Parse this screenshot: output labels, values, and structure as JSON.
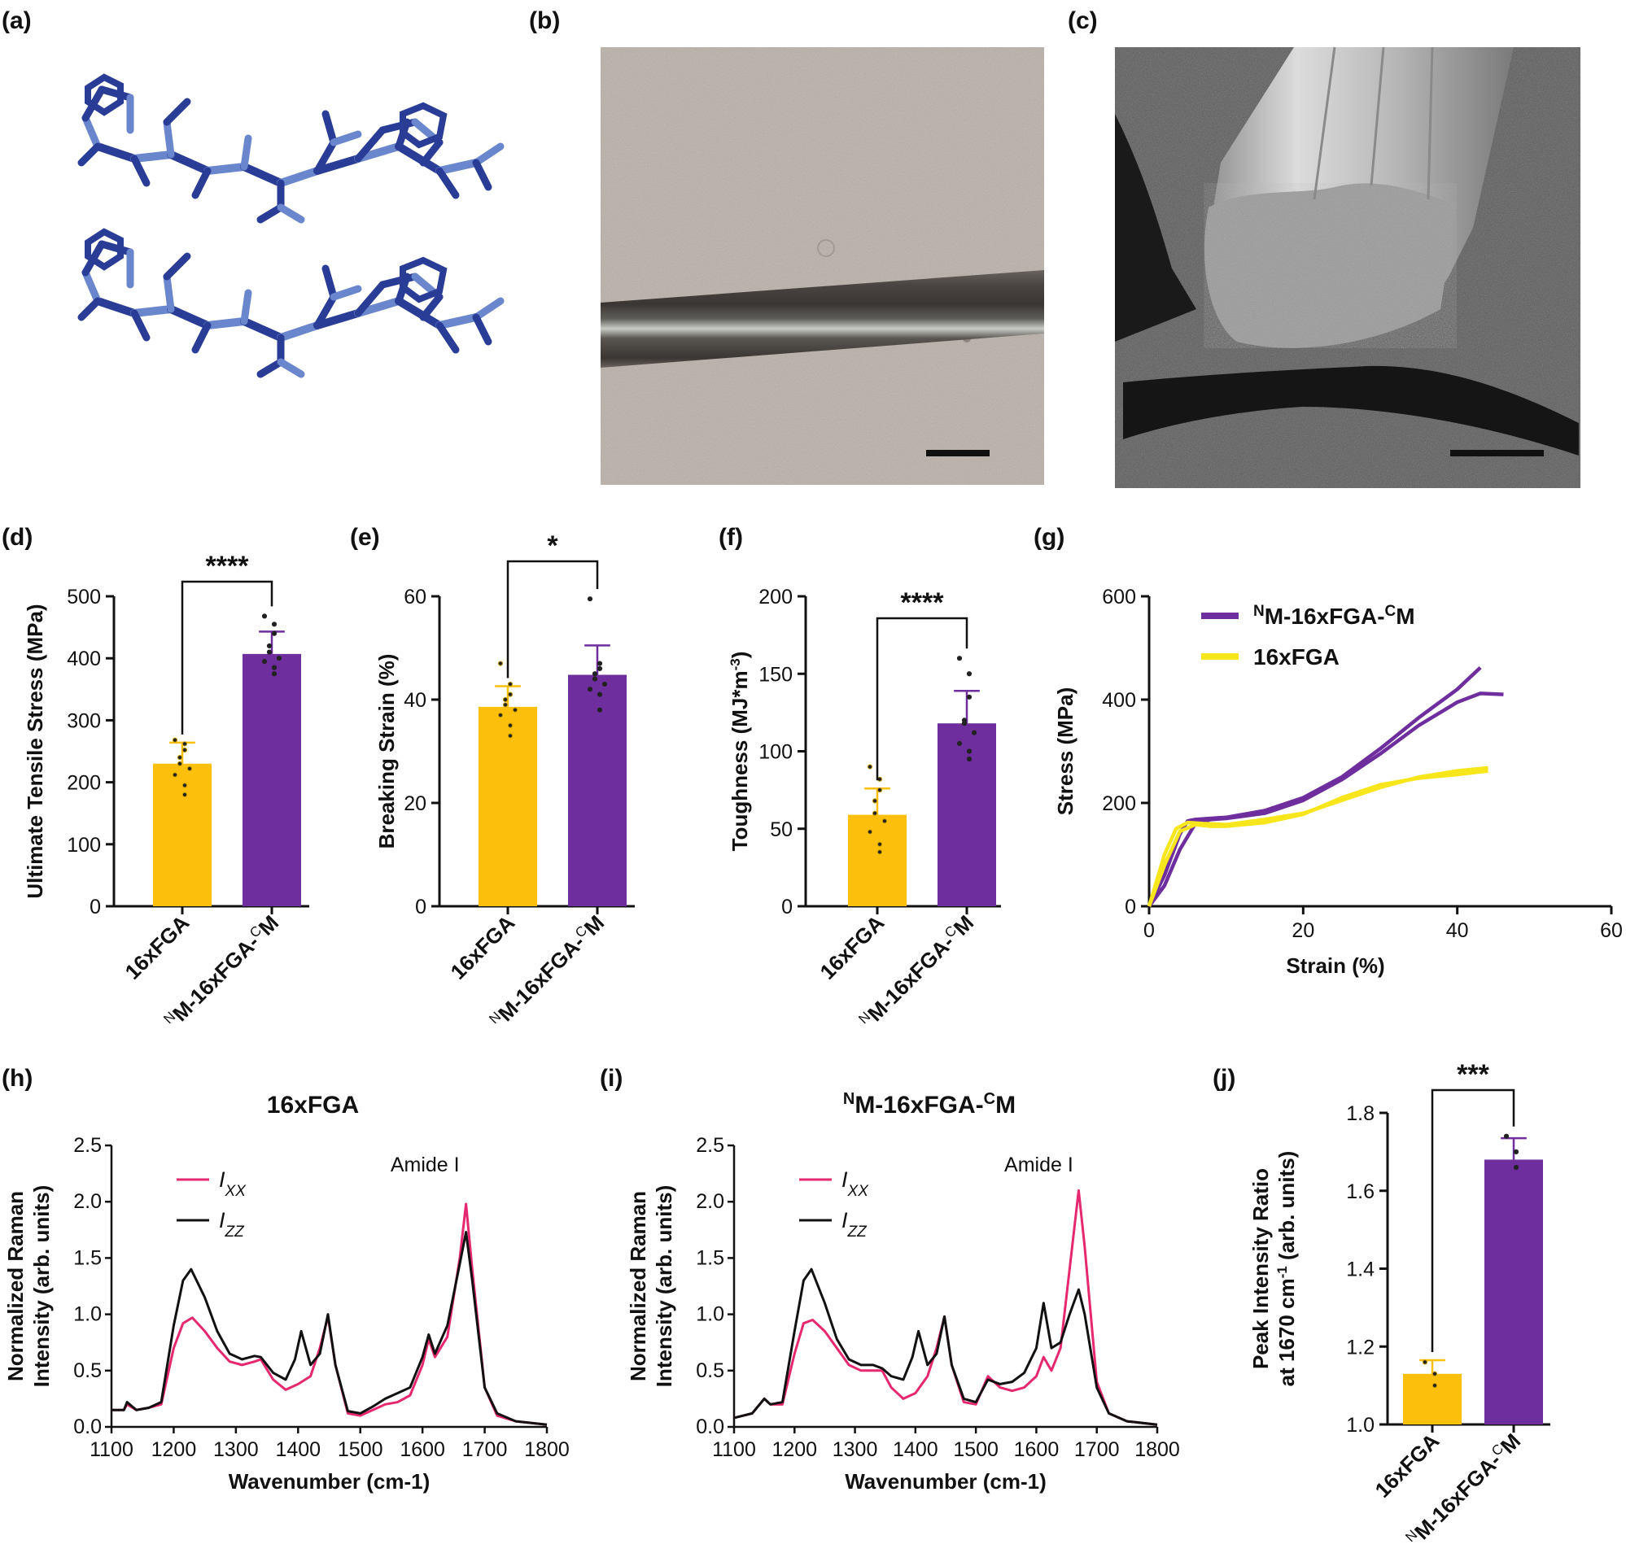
{
  "panel_labels": [
    "(a)",
    "(b)",
    "(c)",
    "(d)",
    "(e)",
    "(f)",
    "(g)",
    "(h)",
    "(i)",
    "(j)"
  ],
  "colors": {
    "FGA": "#fbbf0c",
    "M": "#6f2e9e",
    "FGA_line": "#f7e61c",
    "M_line": "#6f2e9e",
    "Ixx": "#e5286f",
    "Izz": "#111111",
    "peptide_dark": "#2a3d96",
    "peptide_light": "#6a86cc"
  },
  "chart_data": [
    {
      "id": "d",
      "type": "bar",
      "categories": [
        "16xFGA",
        "M-16xFGA-M"
      ],
      "category_super": [
        [
          "",
          "",
          ""
        ],
        [
          "N",
          "M-16xFGA-",
          "C"
        ]
      ],
      "values": [
        230,
        407
      ],
      "errors": [
        34,
        36
      ],
      "points": [
        [
          268,
          262,
          252,
          240,
          230,
          222,
          212,
          195,
          180
        ],
        [
          468,
          455,
          440,
          420,
          410,
          400,
          395,
          385,
          375
        ]
      ],
      "significance": "****",
      "ylabel": "Ultimate Tensile Stress (MPa)",
      "ylim": [
        0,
        500
      ],
      "yticks": [
        "0",
        "100",
        "200",
        "300",
        "400",
        "500"
      ]
    },
    {
      "id": "e",
      "type": "bar",
      "categories": [
        "16xFGA",
        "M-16xFGA-M"
      ],
      "values": [
        38.6,
        44.8
      ],
      "errors": [
        4,
        5.7
      ],
      "points": [
        [
          47,
          43,
          41,
          40,
          39,
          38,
          37,
          35,
          33
        ],
        [
          59.5,
          47,
          46,
          45,
          44,
          43,
          42,
          41,
          38
        ]
      ],
      "significance": "*",
      "ylabel": "Breaking Strain (%)",
      "ylim": [
        0,
        60
      ],
      "yticks": [
        "0",
        "20",
        "40",
        "60"
      ]
    },
    {
      "id": "f",
      "type": "bar",
      "categories": [
        "16xFGA",
        "M-16xFGA-M"
      ],
      "values": [
        59,
        118
      ],
      "errors": [
        17,
        21
      ],
      "points": [
        [
          90,
          82,
          75,
          68,
          60,
          55,
          48,
          40,
          35
        ],
        [
          160,
          150,
          135,
          120,
          118,
          112,
          105,
          100,
          95
        ]
      ],
      "significance": "****",
      "ylabel": "Toughness (MJ*m-3)",
      "ylim": [
        0,
        200
      ],
      "yticks": [
        "0",
        "50",
        "100",
        "150",
        "200"
      ]
    },
    {
      "id": "g",
      "type": "line",
      "xlabel": "Strain (%)",
      "ylabel": "Stress (MPa)",
      "xlim": [
        0,
        60
      ],
      "ylim": [
        0,
        600
      ],
      "xticks": [
        "0",
        "20",
        "40",
        "60"
      ],
      "yticks": [
        "0",
        "200",
        "400",
        "600"
      ],
      "series": [
        {
          "name": "M-16xFGA-M",
          "color": "M",
          "x": [
            0,
            2,
            4,
            5,
            6,
            8,
            10,
            15,
            20,
            25,
            30,
            35,
            40,
            43
          ],
          "y": [
            0,
            60,
            140,
            165,
            168,
            170,
            172,
            185,
            210,
            250,
            305,
            365,
            420,
            462
          ]
        },
        {
          "name": "M-16xFGA-M",
          "color": "M",
          "x": [
            0,
            2,
            4,
            6,
            8,
            10,
            15,
            20,
            25,
            30,
            35,
            40,
            43,
            46
          ],
          "y": [
            0,
            40,
            110,
            160,
            168,
            170,
            180,
            205,
            245,
            295,
            350,
            395,
            412,
            410
          ]
        },
        {
          "name": "16xFGA",
          "color": "FGA",
          "x": [
            0,
            2,
            3.5,
            5,
            7,
            10,
            15,
            20,
            25,
            30,
            35,
            40,
            44
          ],
          "y": [
            0,
            100,
            150,
            162,
            160,
            158,
            168,
            180,
            205,
            230,
            250,
            262,
            268
          ]
        },
        {
          "name": "16xFGA",
          "color": "FGA",
          "x": [
            0,
            2,
            4,
            6,
            8,
            10,
            15,
            20,
            25,
            30,
            35,
            40,
            44
          ],
          "y": [
            0,
            80,
            145,
            158,
            155,
            155,
            162,
            178,
            210,
            235,
            248,
            255,
            262
          ]
        }
      ],
      "legend": [
        {
          "pre": "N",
          "main": "M-16xFGA-",
          "sup": "C",
          "post": "M",
          "color": "M"
        },
        {
          "pre": "",
          "main": "16xFGA",
          "sup": "",
          "post": "",
          "color": "FGA"
        }
      ]
    },
    {
      "id": "h",
      "type": "line",
      "title": "16xFGA",
      "annotation": "Amide I",
      "xlabel": "Wavenumber (cm-1)",
      "ylabel_lines": [
        "Normalized Raman",
        "Intensity (arb. units)"
      ],
      "xlim": [
        1100,
        1800
      ],
      "ylim": [
        0,
        2.5
      ],
      "xticks": [
        "1100",
        "1200",
        "1300",
        "1400",
        "1500",
        "1600",
        "1700",
        "1800"
      ],
      "yticks": [
        "0.0",
        "0.5",
        "1.0",
        "1.5",
        "2.0",
        "2.5"
      ],
      "legend": [
        {
          "label": "I",
          "sub": "XX",
          "color": "Ixx"
        },
        {
          "label": "I",
          "sub": "ZZ",
          "color": "Izz"
        }
      ],
      "series": [
        {
          "name": "Ixx",
          "x": [
            1100,
            1120,
            1125,
            1140,
            1160,
            1180,
            1200,
            1215,
            1230,
            1250,
            1270,
            1290,
            1310,
            1330,
            1340,
            1360,
            1380,
            1400,
            1420,
            1435,
            1448,
            1460,
            1480,
            1500,
            1520,
            1540,
            1560,
            1580,
            1600,
            1610,
            1620,
            1640,
            1660,
            1670,
            1680,
            1700,
            1720,
            1750,
            1800
          ],
          "y": [
            0.15,
            0.15,
            0.2,
            0.15,
            0.17,
            0.2,
            0.7,
            0.92,
            0.97,
            0.85,
            0.7,
            0.58,
            0.55,
            0.58,
            0.6,
            0.42,
            0.33,
            0.38,
            0.45,
            0.7,
            0.98,
            0.55,
            0.12,
            0.1,
            0.15,
            0.2,
            0.22,
            0.28,
            0.55,
            0.78,
            0.62,
            0.8,
            1.5,
            1.98,
            1.4,
            0.35,
            0.1,
            0.05,
            0.02
          ]
        },
        {
          "name": "Izz",
          "x": [
            1100,
            1120,
            1125,
            1140,
            1160,
            1180,
            1200,
            1215,
            1228,
            1250,
            1270,
            1290,
            1310,
            1330,
            1340,
            1360,
            1380,
            1395,
            1405,
            1420,
            1435,
            1448,
            1460,
            1480,
            1500,
            1520,
            1540,
            1560,
            1580,
            1600,
            1610,
            1620,
            1640,
            1660,
            1670,
            1680,
            1700,
            1720,
            1750,
            1800
          ],
          "y": [
            0.15,
            0.15,
            0.22,
            0.15,
            0.17,
            0.22,
            0.9,
            1.3,
            1.4,
            1.15,
            0.85,
            0.65,
            0.6,
            0.63,
            0.62,
            0.48,
            0.42,
            0.6,
            0.85,
            0.55,
            0.65,
            1.0,
            0.55,
            0.14,
            0.12,
            0.18,
            0.25,
            0.3,
            0.35,
            0.62,
            0.82,
            0.65,
            0.9,
            1.45,
            1.73,
            1.3,
            0.35,
            0.12,
            0.05,
            0.02
          ]
        }
      ]
    },
    {
      "id": "i",
      "type": "line",
      "title_parts": {
        "pre": "N",
        "main": "M-16xFGA-",
        "sup": "C",
        "post": "M"
      },
      "annotation": "Amide I",
      "xlabel": "Wavenumber (cm-1)",
      "ylabel_lines": [
        "Normalized Raman",
        "Intensity (arb. units)"
      ],
      "xlim": [
        1100,
        1800
      ],
      "ylim": [
        0,
        2.5
      ],
      "xticks": [
        "1100",
        "1200",
        "1300",
        "1400",
        "1500",
        "1600",
        "1700",
        "1800"
      ],
      "yticks": [
        "0.0",
        "0.5",
        "1.0",
        "1.5",
        "2.0",
        "2.5"
      ],
      "legend": [
        {
          "label": "I",
          "sub": "XX",
          "color": "Ixx"
        },
        {
          "label": "I",
          "sub": "ZZ",
          "color": "Izz"
        }
      ],
      "series": [
        {
          "name": "Ixx",
          "x": [
            1100,
            1130,
            1150,
            1160,
            1180,
            1200,
            1215,
            1230,
            1250,
            1270,
            1290,
            1310,
            1330,
            1345,
            1360,
            1380,
            1400,
            1420,
            1435,
            1448,
            1460,
            1480,
            1500,
            1520,
            1540,
            1560,
            1580,
            1600,
            1612,
            1625,
            1640,
            1655,
            1670,
            1680,
            1700,
            1720,
            1750,
            1800
          ],
          "y": [
            0.08,
            0.12,
            0.25,
            0.2,
            0.2,
            0.65,
            0.92,
            0.95,
            0.85,
            0.7,
            0.55,
            0.5,
            0.5,
            0.5,
            0.35,
            0.25,
            0.3,
            0.45,
            0.7,
            0.98,
            0.55,
            0.22,
            0.2,
            0.45,
            0.35,
            0.32,
            0.35,
            0.45,
            0.62,
            0.5,
            0.7,
            1.4,
            2.1,
            1.6,
            0.4,
            0.12,
            0.05,
            0.02
          ]
        },
        {
          "name": "Izz",
          "x": [
            1100,
            1130,
            1150,
            1160,
            1180,
            1200,
            1215,
            1228,
            1250,
            1270,
            1290,
            1310,
            1330,
            1345,
            1360,
            1380,
            1395,
            1405,
            1420,
            1435,
            1448,
            1460,
            1480,
            1500,
            1520,
            1540,
            1560,
            1580,
            1600,
            1612,
            1625,
            1640,
            1655,
            1670,
            1680,
            1700,
            1720,
            1750,
            1800
          ],
          "y": [
            0.08,
            0.12,
            0.25,
            0.2,
            0.22,
            0.85,
            1.3,
            1.4,
            1.1,
            0.78,
            0.6,
            0.55,
            0.55,
            0.52,
            0.45,
            0.42,
            0.62,
            0.85,
            0.55,
            0.65,
            0.98,
            0.55,
            0.25,
            0.22,
            0.42,
            0.38,
            0.4,
            0.48,
            0.7,
            1.1,
            0.7,
            0.75,
            1.0,
            1.22,
            1.0,
            0.35,
            0.12,
            0.05,
            0.02
          ]
        }
      ]
    },
    {
      "id": "j",
      "type": "bar",
      "categories": [
        "16xFGA",
        "M-16xFGA-M"
      ],
      "values": [
        1.13,
        1.68
      ],
      "errors": [
        0.035,
        0.055
      ],
      "points": [
        [
          1.16,
          1.13,
          1.1
        ],
        [
          1.74,
          1.7,
          1.66
        ]
      ],
      "significance": "***",
      "ylabel_lines": [
        "Peak Intensity Ratio",
        "at 1670 cm-1 (arb. units)"
      ],
      "ylim": [
        1.0,
        1.8
      ],
      "yticks": [
        "1.0",
        "1.2",
        "1.4",
        "1.6",
        "1.8"
      ]
    }
  ]
}
